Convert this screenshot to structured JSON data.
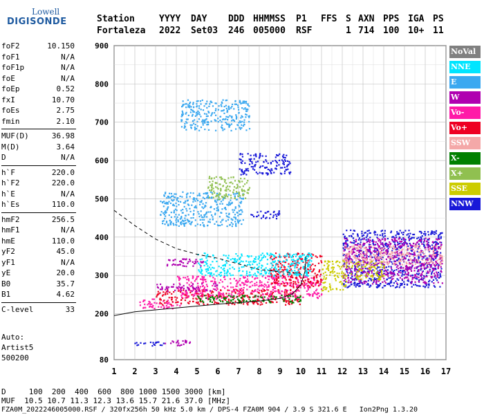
{
  "logo": {
    "line1": "Lowell",
    "line2": "DIGISONDE"
  },
  "header": {
    "row1": [
      "Station",
      "YYYY",
      "DAY",
      "DDD",
      "HHMMSS",
      "P1",
      "FFS",
      "S",
      "AXN",
      "PPS",
      "IGA",
      "PS"
    ],
    "row2": [
      "Fortaleza",
      "2022",
      "Set03",
      "246",
      "005000",
      "RSF",
      "1",
      "714",
      "100",
      "10+",
      "11"
    ]
  },
  "params": [
    {
      "name": "foF2",
      "value": "10.150"
    },
    {
      "name": "foF1",
      "value": "N/A"
    },
    {
      "name": "foF1p",
      "value": "N/A"
    },
    {
      "name": "foE",
      "value": "N/A"
    },
    {
      "name": "foEp",
      "value": "0.52"
    },
    {
      "name": "fxI",
      "value": "10.70"
    },
    {
      "name": "foEs",
      "value": "2.75"
    },
    {
      "name": "fmin",
      "value": "2.10"
    },
    {
      "name": "MUF(D)",
      "value": "36.98"
    },
    {
      "name": "M(D)",
      "value": "3.64"
    },
    {
      "name": "D",
      "value": "N/A"
    },
    {
      "name": "h`F",
      "value": "220.0"
    },
    {
      "name": "h`F2",
      "value": "220.0"
    },
    {
      "name": "h`E",
      "value": "N/A"
    },
    {
      "name": "h`Es",
      "value": "110.0"
    },
    {
      "name": "hmF2",
      "value": "256.5"
    },
    {
      "name": "hmF1",
      "value": "N/A"
    },
    {
      "name": "hmE",
      "value": "110.0"
    },
    {
      "name": "yF2",
      "value": "45.0"
    },
    {
      "name": "yF1",
      "value": "N/A"
    },
    {
      "name": "yE",
      "value": "20.0"
    },
    {
      "name": "B0",
      "value": "35.7"
    },
    {
      "name": "B1",
      "value": "4.62"
    },
    {
      "name": "C-level",
      "value": "33"
    }
  ],
  "footer": {
    "line1": "Auto:",
    "line2": "Artist5",
    "line3": "500200"
  },
  "bottom": {
    "d_line": "D     100  200  400  600  800 1000 1500 3000 [km]",
    "muf_line": "MUF  10.5 10.7 11.3 12.3 13.6 15.7 21.6 37.0 [MHz]",
    "file_line": "FZA0M_2022246005000.RSF / 320fx256h 50 kHz 5.0 km / DPS-4 FZA0M 904 / 3.9 S 321.6 E   Ion2Png 1.3.20"
  },
  "legend": [
    {
      "label": "NoVal",
      "color": "#808080"
    },
    {
      "label": "NNE",
      "color": "#00e5ff"
    },
    {
      "label": "E",
      "color": "#3aa8f0"
    },
    {
      "label": "W",
      "color": "#b000b0"
    },
    {
      "label": "Vo-",
      "color": "#ff1aa8"
    },
    {
      "label": "Vo+",
      "color": "#ee0022"
    },
    {
      "label": "SSW",
      "color": "#f4a8a8"
    },
    {
      "label": "X-",
      "color": "#008000"
    },
    {
      "label": "X+",
      "color": "#90c050"
    },
    {
      "label": "SSE",
      "color": "#cccc00"
    },
    {
      "label": "NNW",
      "color": "#1818d8"
    }
  ],
  "chart_data": {
    "type": "scatter",
    "xlim": [
      1,
      17
    ],
    "ylim": [
      80,
      900
    ],
    "x_ticks": [
      1,
      2,
      3,
      4,
      5,
      6,
      7,
      8,
      9,
      10,
      11,
      12,
      13,
      14,
      15,
      16,
      17
    ],
    "y_ticks": [
      80,
      200,
      300,
      400,
      500,
      600,
      700,
      800,
      900
    ],
    "grid": true,
    "clusters": [
      {
        "x": [
          1.8,
          3.4
        ],
        "y": [
          118,
          130
        ],
        "color": "#1818d8"
      },
      {
        "x": [
          3.4,
          4.9
        ],
        "y": [
          118,
          132
        ],
        "color": "#b000b0"
      },
      {
        "x": [
          2.2,
          4.2
        ],
        "y": [
          215,
          240
        ],
        "color": "#ff1aa8"
      },
      {
        "x": [
          3.0,
          10.0
        ],
        "y": [
          225,
          265
        ],
        "color": "#ee0022"
      },
      {
        "x": [
          4.0,
          11.0
        ],
        "y": [
          240,
          300
        ],
        "color": "#ff1aa8"
      },
      {
        "x": [
          8.5,
          11.0
        ],
        "y": [
          270,
          360
        ],
        "color": "#ee0022"
      },
      {
        "x": [
          5.0,
          10.5
        ],
        "y": [
          300,
          360
        ],
        "color": "#00e5ff"
      },
      {
        "x": [
          3.0,
          6.0
        ],
        "y": [
          260,
          280
        ],
        "color": "#b000b0"
      },
      {
        "x": [
          3.2,
          5.3
        ],
        "y": [
          325,
          345
        ],
        "color": "#b000b0"
      },
      {
        "x": [
          3.2,
          7.2
        ],
        "y": [
          430,
          520
        ],
        "color": "#3aa8f0"
      },
      {
        "x": [
          4.2,
          7.5
        ],
        "y": [
          680,
          760
        ],
        "color": "#3aa8f0"
      },
      {
        "x": [
          5.5,
          7.5
        ],
        "y": [
          500,
          560
        ],
        "color": "#90c050"
      },
      {
        "x": [
          7.5,
          9.0
        ],
        "y": [
          450,
          470
        ],
        "color": "#1818d8"
      },
      {
        "x": [
          7.0,
          9.5
        ],
        "y": [
          565,
          620
        ],
        "color": "#1818d8"
      },
      {
        "x": [
          12.0,
          16.8
        ],
        "y": [
          270,
          420
        ],
        "color": "#1818d8"
      },
      {
        "x": [
          12.0,
          16.8
        ],
        "y": [
          280,
          400
        ],
        "color": "#b000b0"
      },
      {
        "x": [
          12.3,
          14.0
        ],
        "y": [
          290,
          340
        ],
        "color": "#cccc00"
      },
      {
        "x": [
          12.0,
          16.8
        ],
        "y": [
          330,
          380
        ],
        "color": "#f4a8a8"
      },
      {
        "x": [
          11.0,
          12.2
        ],
        "y": [
          260,
          340
        ],
        "color": "#cccc00"
      },
      {
        "x": [
          5.0,
          10.0
        ],
        "y": [
          230,
          250
        ],
        "color": "#008000"
      }
    ],
    "trace_lower": [
      [
        1.0,
        195
      ],
      [
        2.0,
        205
      ],
      [
        4.0,
        215
      ],
      [
        6.0,
        225
      ],
      [
        8.0,
        233
      ],
      [
        9.0,
        240
      ],
      [
        9.6,
        252
      ],
      [
        10.0,
        275
      ],
      [
        10.2,
        310
      ],
      [
        10.25,
        350
      ]
    ],
    "trace_upper": [
      [
        1.0,
        470
      ],
      [
        2.0,
        430
      ],
      [
        3.0,
        395
      ],
      [
        4.0,
        370
      ],
      [
        5.0,
        355
      ],
      [
        6.0,
        345
      ],
      [
        7.0,
        330
      ],
      [
        8.0,
        315
      ],
      [
        9.0,
        310
      ],
      [
        10.0,
        305
      ]
    ]
  }
}
